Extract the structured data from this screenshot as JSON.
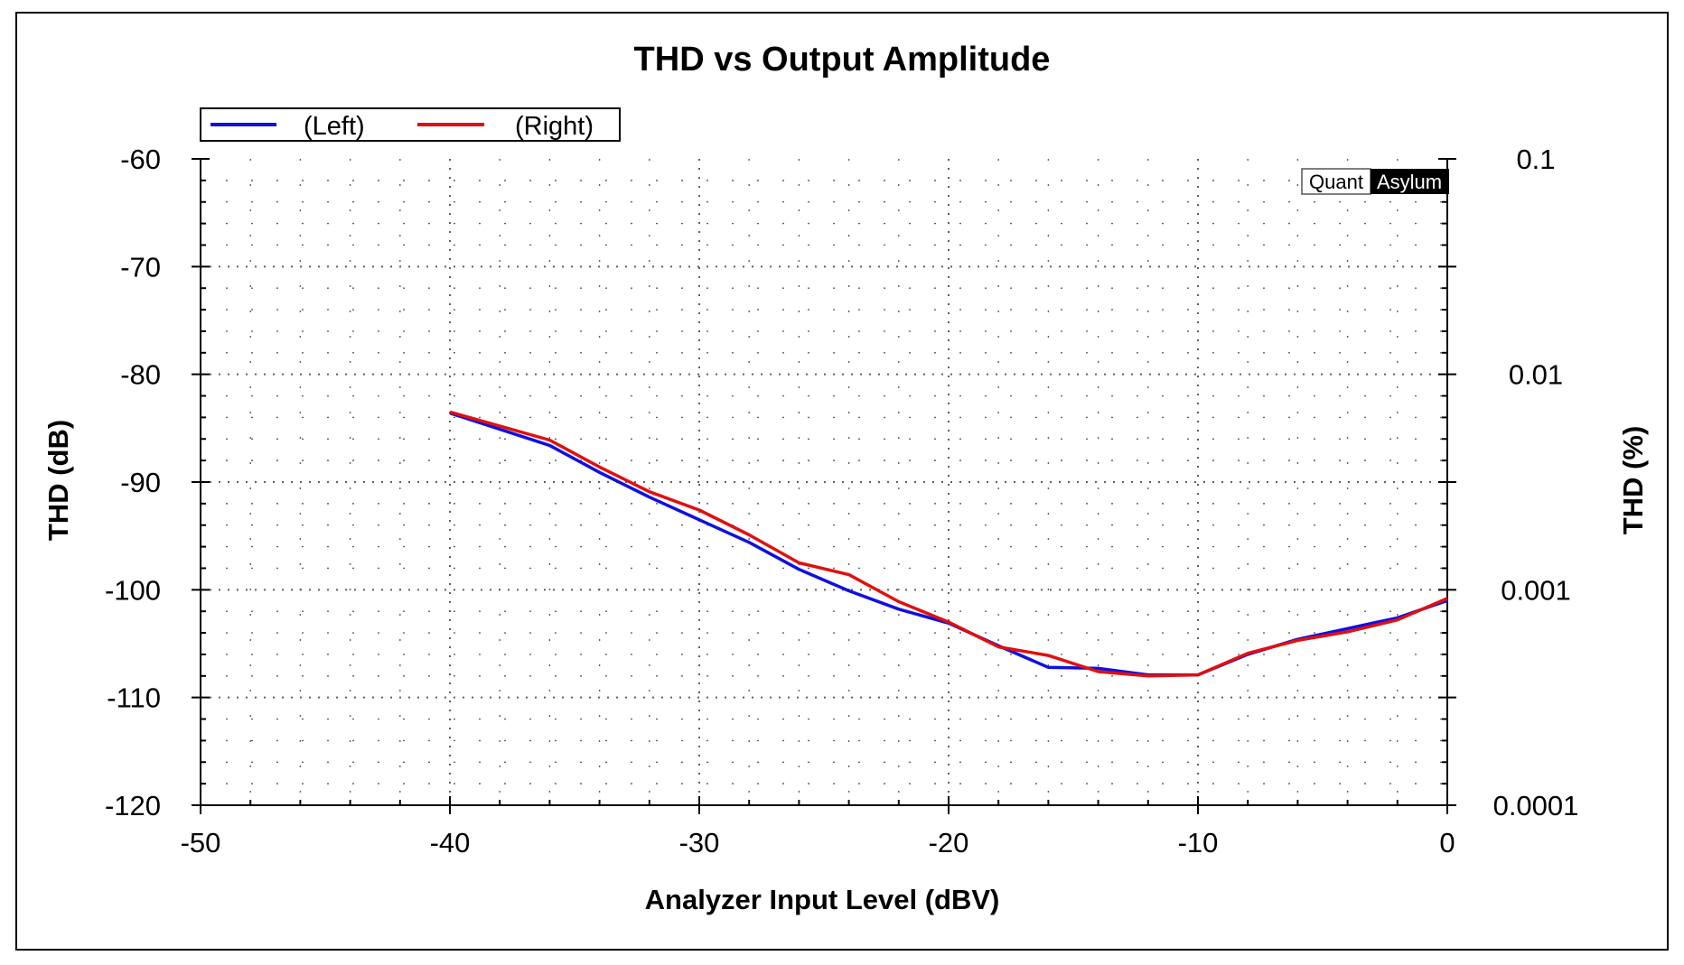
{
  "chart_data": {
    "type": "line",
    "title": "THD vs Output Amplitude",
    "xlabel": "Analyzer Input Level (dBV)",
    "ylabel": "THD (dB)",
    "y2label": "THD (%)",
    "xlim": [
      -50,
      0
    ],
    "ylim": [
      -120,
      -60
    ],
    "xticks": [
      "-50",
      "-40",
      "-30",
      "-20",
      "-10",
      "0"
    ],
    "yticks": [
      "-60",
      "-70",
      "-80",
      "-90",
      "-100",
      "-110",
      "-120"
    ],
    "y2ticks": [
      "0.1",
      "0.01",
      "0.001",
      "0.0001"
    ],
    "grid": true,
    "legend_position": "top-left",
    "series": [
      {
        "name": "(Left)",
        "color": "#1010e0",
        "x": [
          -40,
          -36,
          -34,
          -32,
          -30,
          -28,
          -26,
          -24,
          -22,
          -20,
          -18,
          -16,
          -14,
          -12,
          -10,
          -8,
          -6,
          -4,
          -2,
          0
        ],
        "y": [
          -83.6,
          -86.6,
          -89.1,
          -91.4,
          -93.5,
          -95.6,
          -98.1,
          -100.1,
          -101.8,
          -103.1,
          -105.2,
          -107.2,
          -107.3,
          -107.9,
          -107.9,
          -106.0,
          -104.6,
          -103.6,
          -102.6,
          -101.0
        ]
      },
      {
        "name": "(Right)",
        "color": "#e01010",
        "x": [
          -40,
          -36,
          -34,
          -32,
          -30,
          -28,
          -26,
          -24,
          -22,
          -20,
          -18,
          -16,
          -14,
          -12,
          -10,
          -8,
          -6,
          -4,
          -2,
          0
        ],
        "y": [
          -83.5,
          -86.1,
          -88.6,
          -90.9,
          -92.6,
          -94.9,
          -97.5,
          -98.6,
          -101.1,
          -103.0,
          -105.3,
          -106.1,
          -107.6,
          -108.0,
          -107.9,
          -105.9,
          -104.7,
          -103.9,
          -102.8,
          -100.8
        ]
      }
    ]
  },
  "logo": {
    "part1": "Quant",
    "part2": "Asylum"
  }
}
